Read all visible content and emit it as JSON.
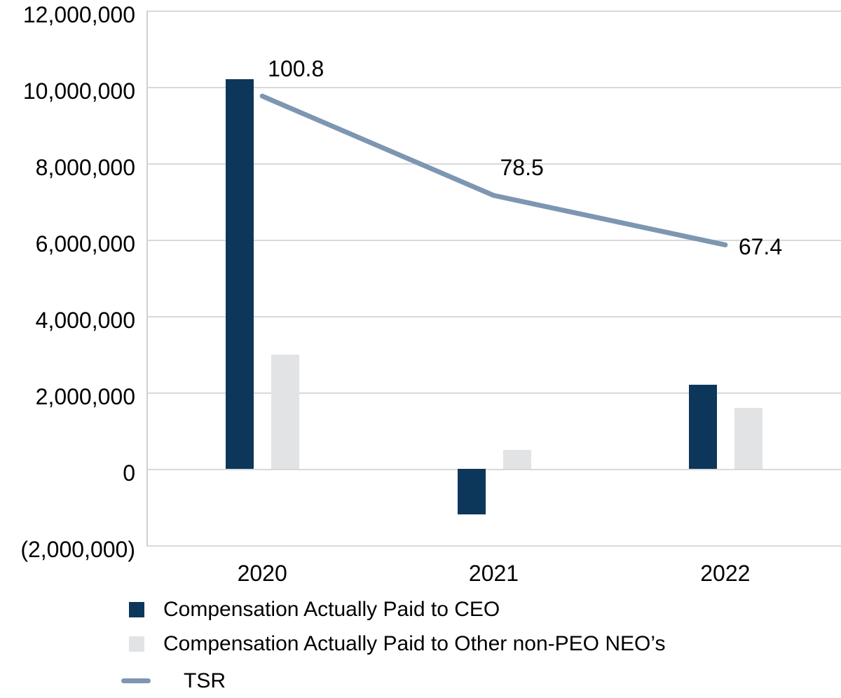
{
  "chart_data": {
    "type": "bar+line combo",
    "title": "",
    "xlabel": "",
    "ylabel": "",
    "categories": [
      "2020",
      "2021",
      "2022"
    ],
    "series": [
      {
        "name": "Compensation Actually Paid to CEO",
        "type": "bar",
        "color": "#0d375a",
        "axis": "primary",
        "values": [
          10200000,
          -1200000,
          2200000
        ]
      },
      {
        "name": "Compensation Actually Paid to Other non-PEO NEO’s",
        "type": "bar",
        "color": "#e2e3e5",
        "axis": "primary",
        "values": [
          3000000,
          500000,
          1600000
        ]
      },
      {
        "name": "TSR",
        "type": "line",
        "color": "#7d96b2",
        "axis": "secondary",
        "values": [
          100.8,
          78.5,
          67.4
        ]
      }
    ],
    "line_labels": [
      "100.8",
      "78.5",
      "67.4"
    ],
    "ylim": [
      -2000000,
      12000000
    ],
    "y_tick_step": 2000000,
    "y_tick_labels": [
      "12,000,000",
      "10,000,000",
      "8,000,000",
      "6,000,000",
      "4,000,000",
      "2,000,000",
      "0",
      "(2,000,000)"
    ],
    "secondary_ylim": [
      0,
      120
    ],
    "grid": true,
    "legend_position": "bottom-left"
  },
  "colors": {
    "ceo_bar": "#0d375a",
    "neo_bar": "#e2e3e5",
    "tsr_line": "#7d96b2",
    "gridline": "#d9d9d9",
    "text": "#000000"
  }
}
